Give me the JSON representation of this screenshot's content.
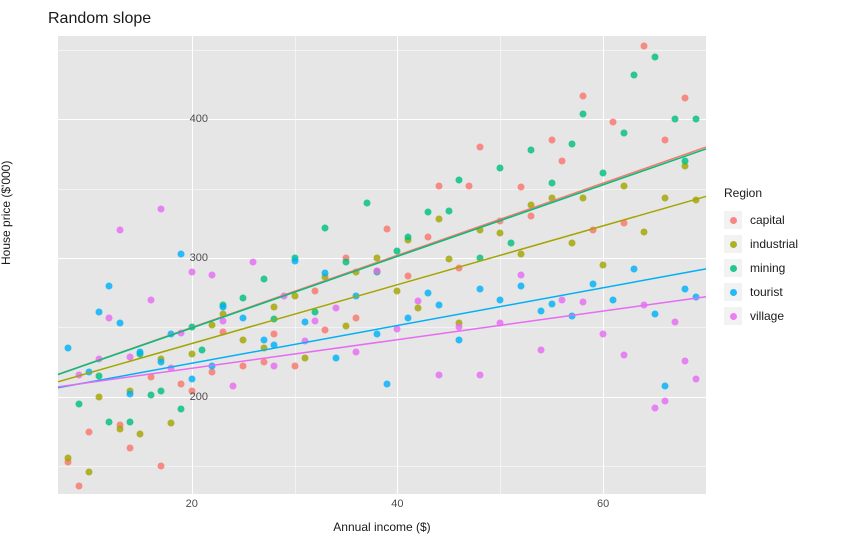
{
  "chart": {
    "type": "scatter+line",
    "title": "Random slope",
    "title_fontsize": 16,
    "xlabel": "Annual income ($)",
    "ylabel": "House price ($'000)",
    "label_fontsize": 12,
    "tick_fontsize": 11,
    "background_color": "#ffffff",
    "panel_color": "#e6e6e6",
    "grid_color": "#ffffff",
    "xlim": [
      7,
      70
    ],
    "ylim": [
      130,
      460
    ],
    "x_breaks": [
      20,
      40,
      60
    ],
    "y_breaks": [
      200,
      300,
      400
    ],
    "x_minor": [
      30,
      50,
      70
    ],
    "y_minor": [
      150,
      250,
      350,
      450
    ],
    "point_size": 7,
    "point_alpha": 0.82,
    "line_width": 1.5,
    "legend_title": "Region",
    "legend_position": "right",
    "series": {
      "capital": {
        "color": "#f8766d",
        "intercept": 198,
        "slope": 2.6,
        "points": [
          [
            8,
            153
          ],
          [
            9,
            136
          ],
          [
            10,
            175
          ],
          [
            13,
            180
          ],
          [
            14,
            163
          ],
          [
            16,
            214
          ],
          [
            17,
            150
          ],
          [
            19,
            209
          ],
          [
            20,
            204
          ],
          [
            22,
            218
          ],
          [
            23,
            247
          ],
          [
            25,
            222
          ],
          [
            27,
            225
          ],
          [
            28,
            245
          ],
          [
            30,
            222
          ],
          [
            32,
            276
          ],
          [
            33,
            248
          ],
          [
            35,
            300
          ],
          [
            36,
            257
          ],
          [
            38,
            291
          ],
          [
            39,
            321
          ],
          [
            41,
            287
          ],
          [
            43,
            315
          ],
          [
            44,
            352
          ],
          [
            46,
            293
          ],
          [
            47,
            352
          ],
          [
            48,
            380
          ],
          [
            50,
            327
          ],
          [
            52,
            351
          ],
          [
            53,
            330
          ],
          [
            55,
            385
          ],
          [
            56,
            370
          ],
          [
            58,
            417
          ],
          [
            59,
            320
          ],
          [
            61,
            398
          ],
          [
            62,
            325
          ],
          [
            64,
            453
          ],
          [
            66,
            385
          ],
          [
            68,
            415
          ]
        ]
      },
      "industrial": {
        "color": "#a3a500",
        "intercept": 196,
        "slope": 2.12,
        "points": [
          [
            8,
            156
          ],
          [
            10,
            146
          ],
          [
            11,
            200
          ],
          [
            13,
            177
          ],
          [
            14,
            204
          ],
          [
            15,
            173
          ],
          [
            17,
            227
          ],
          [
            18,
            181
          ],
          [
            20,
            231
          ],
          [
            22,
            252
          ],
          [
            23,
            260
          ],
          [
            25,
            241
          ],
          [
            27,
            235
          ],
          [
            28,
            265
          ],
          [
            30,
            273
          ],
          [
            31,
            228
          ],
          [
            33,
            286
          ],
          [
            35,
            251
          ],
          [
            36,
            290
          ],
          [
            38,
            300
          ],
          [
            40,
            276
          ],
          [
            41,
            313
          ],
          [
            42,
            264
          ],
          [
            44,
            328
          ],
          [
            45,
            299
          ],
          [
            46,
            253
          ],
          [
            48,
            320
          ],
          [
            50,
            318
          ],
          [
            52,
            303
          ],
          [
            53,
            338
          ],
          [
            55,
            343
          ],
          [
            57,
            311
          ],
          [
            58,
            343
          ],
          [
            60,
            295
          ],
          [
            62,
            352
          ],
          [
            64,
            319
          ],
          [
            66,
            343
          ],
          [
            68,
            366
          ],
          [
            69,
            342
          ]
        ]
      },
      "mining": {
        "color": "#00bf7d",
        "intercept": 198,
        "slope": 2.58,
        "points": [
          [
            9,
            195
          ],
          [
            11,
            215
          ],
          [
            12,
            182
          ],
          [
            14,
            182
          ],
          [
            15,
            231
          ],
          [
            16,
            201
          ],
          [
            17,
            204
          ],
          [
            19,
            191
          ],
          [
            20,
            250
          ],
          [
            21,
            234
          ],
          [
            23,
            266
          ],
          [
            25,
            271
          ],
          [
            27,
            285
          ],
          [
            28,
            256
          ],
          [
            30,
            300
          ],
          [
            32,
            261
          ],
          [
            33,
            322
          ],
          [
            35,
            297
          ],
          [
            37,
            340
          ],
          [
            38,
            290
          ],
          [
            40,
            305
          ],
          [
            41,
            315
          ],
          [
            43,
            333
          ],
          [
            45,
            334
          ],
          [
            46,
            356
          ],
          [
            48,
            300
          ],
          [
            50,
            365
          ],
          [
            51,
            311
          ],
          [
            53,
            378
          ],
          [
            55,
            354
          ],
          [
            57,
            382
          ],
          [
            58,
            404
          ],
          [
            60,
            361
          ],
          [
            62,
            390
          ],
          [
            63,
            432
          ],
          [
            65,
            445
          ],
          [
            67,
            400
          ],
          [
            68,
            370
          ],
          [
            69,
            400
          ]
        ]
      },
      "tourist": {
        "color": "#00b0f6",
        "intercept": 197,
        "slope": 1.36,
        "points": [
          [
            8,
            235
          ],
          [
            10,
            218
          ],
          [
            11,
            261
          ],
          [
            12,
            280
          ],
          [
            13,
            253
          ],
          [
            14,
            202
          ],
          [
            15,
            232
          ],
          [
            17,
            225
          ],
          [
            18,
            245
          ],
          [
            19,
            303
          ],
          [
            20,
            213
          ],
          [
            22,
            222
          ],
          [
            23,
            265
          ],
          [
            25,
            257
          ],
          [
            27,
            241
          ],
          [
            28,
            237
          ],
          [
            30,
            298
          ],
          [
            31,
            254
          ],
          [
            33,
            289
          ],
          [
            34,
            228
          ],
          [
            36,
            273
          ],
          [
            38,
            245
          ],
          [
            39,
            209
          ],
          [
            41,
            257
          ],
          [
            43,
            275
          ],
          [
            44,
            266
          ],
          [
            46,
            241
          ],
          [
            48,
            278
          ],
          [
            50,
            270
          ],
          [
            52,
            280
          ],
          [
            54,
            262
          ],
          [
            55,
            267
          ],
          [
            57,
            258
          ],
          [
            59,
            281
          ],
          [
            61,
            270
          ],
          [
            63,
            292
          ],
          [
            65,
            260
          ],
          [
            66,
            208
          ],
          [
            68,
            278
          ],
          [
            69,
            272
          ]
        ]
      },
      "village": {
        "color": "#e76bf3",
        "intercept": 200,
        "slope": 1.03,
        "points": [
          [
            9,
            216
          ],
          [
            11,
            227
          ],
          [
            12,
            257
          ],
          [
            13,
            320
          ],
          [
            14,
            229
          ],
          [
            16,
            270
          ],
          [
            17,
            335
          ],
          [
            18,
            221
          ],
          [
            19,
            246
          ],
          [
            20,
            290
          ],
          [
            22,
            288
          ],
          [
            23,
            255
          ],
          [
            24,
            208
          ],
          [
            26,
            297
          ],
          [
            28,
            222
          ],
          [
            29,
            273
          ],
          [
            31,
            240
          ],
          [
            32,
            255
          ],
          [
            34,
            264
          ],
          [
            36,
            232
          ],
          [
            38,
            291
          ],
          [
            40,
            249
          ],
          [
            42,
            269
          ],
          [
            44,
            216
          ],
          [
            46,
            250
          ],
          [
            48,
            216
          ],
          [
            50,
            253
          ],
          [
            52,
            288
          ],
          [
            54,
            234
          ],
          [
            56,
            270
          ],
          [
            58,
            268
          ],
          [
            60,
            245
          ],
          [
            62,
            230
          ],
          [
            64,
            266
          ],
          [
            65,
            192
          ],
          [
            66,
            197
          ],
          [
            67,
            254
          ],
          [
            68,
            226
          ],
          [
            69,
            213
          ]
        ]
      }
    },
    "legend_order": [
      "capital",
      "industrial",
      "mining",
      "tourist",
      "village"
    ]
  }
}
